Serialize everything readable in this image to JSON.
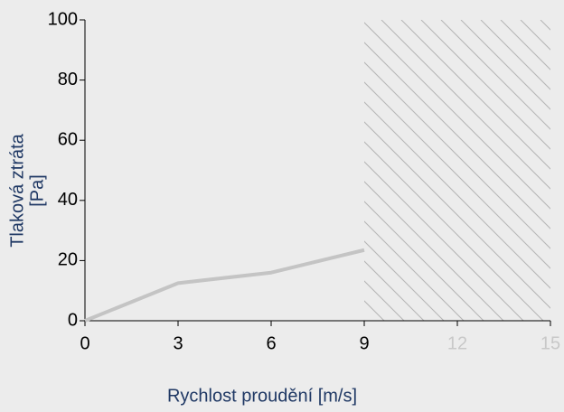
{
  "chart_data": {
    "type": "line",
    "xlabel": "Rychlost proudění [m/s]",
    "ylabel": [
      "Tlaková ztráta",
      "[Pa]"
    ],
    "x": [
      0,
      3,
      6,
      9
    ],
    "series": [
      {
        "name": null,
        "color": "#c4c4c4",
        "values": [
          0,
          12.5,
          16,
          23.5
        ]
      }
    ],
    "xlim": [
      0,
      15
    ],
    "xticks": [
      0,
      3,
      6,
      9,
      12,
      15
    ],
    "ylim": [
      0,
      100
    ],
    "yticks": [
      0,
      20,
      40,
      60,
      80,
      100
    ],
    "hatched_xrange": [
      9,
      15
    ],
    "grid": false
  }
}
